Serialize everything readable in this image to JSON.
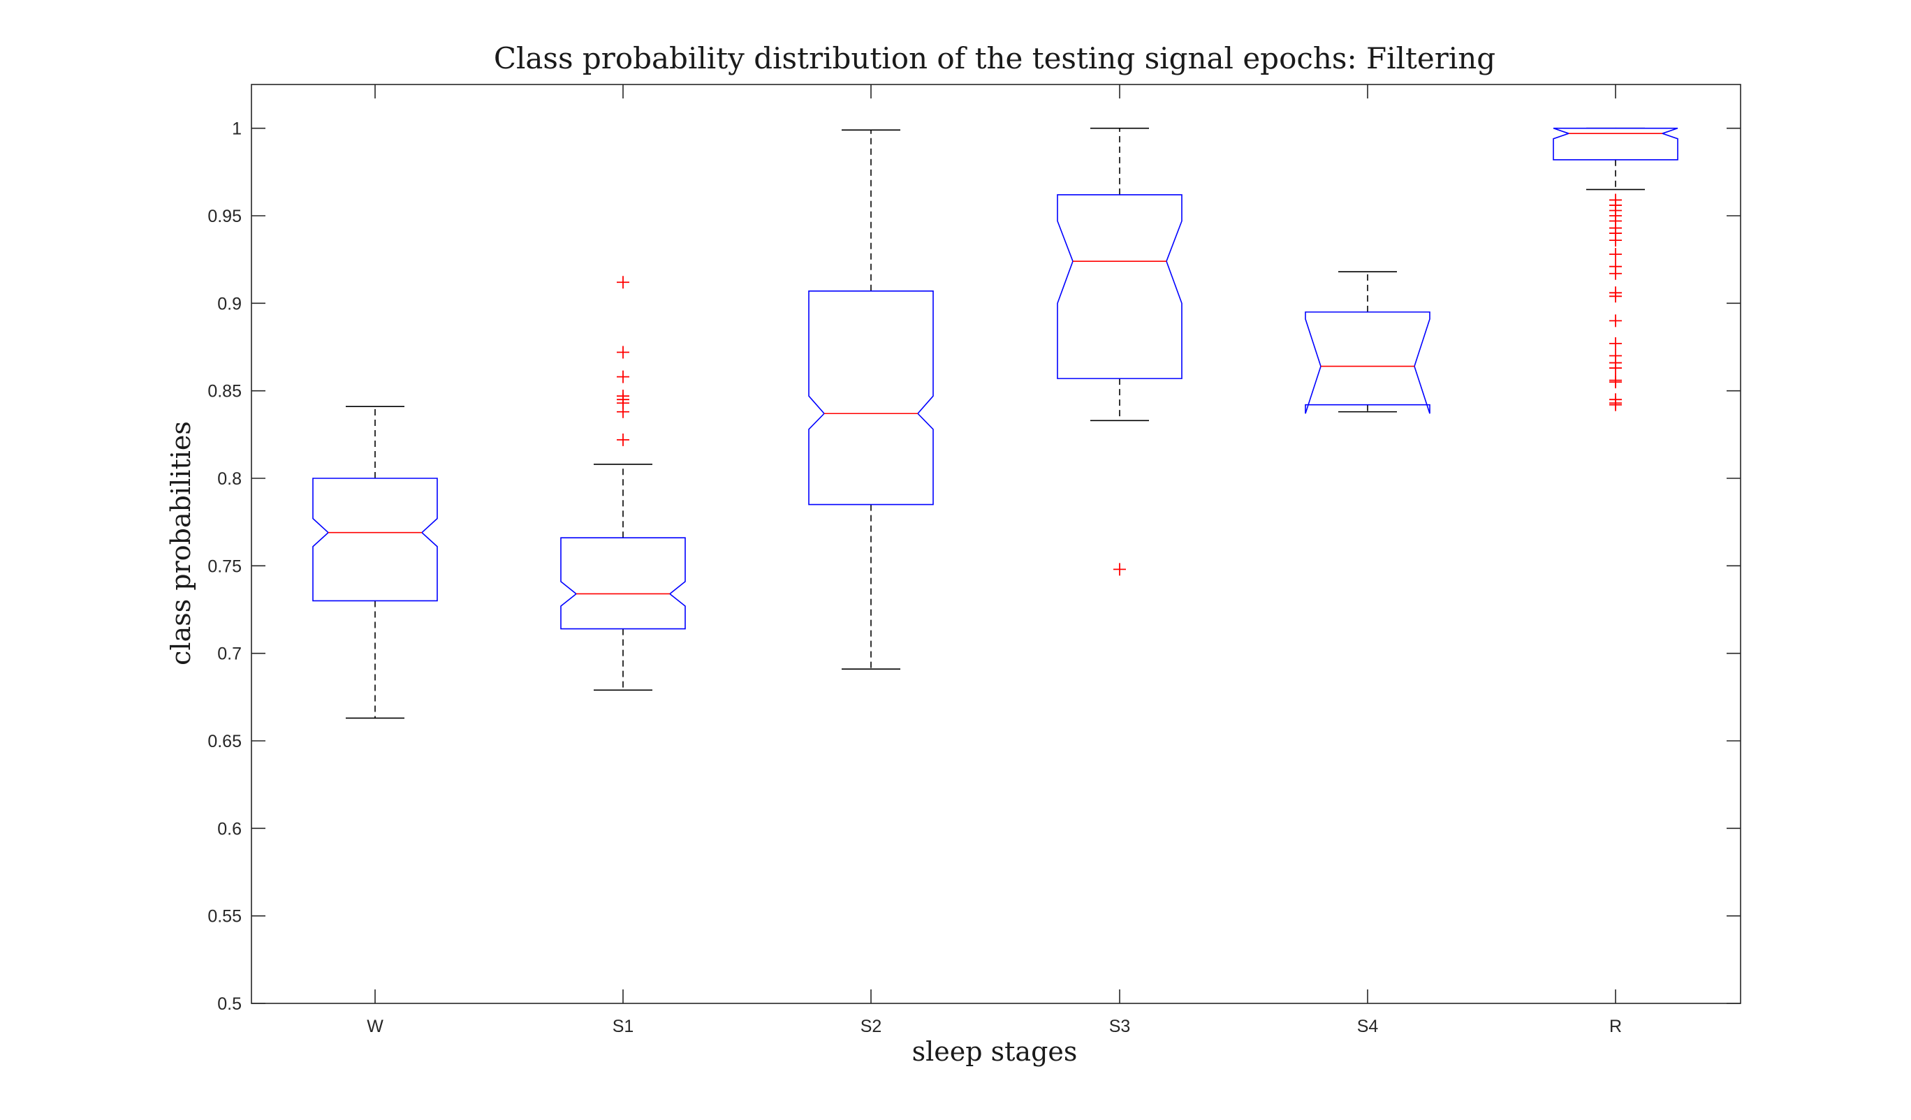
{
  "chart_data": {
    "type": "boxplot",
    "title": "Class probability distribution of the testing signal epochs: Filtering",
    "xlabel": "sleep stages",
    "ylabel": "class probabilities",
    "ylim": [
      0.5,
      1.025
    ],
    "yticks": [
      0.5,
      0.55,
      0.6,
      0.65,
      0.7,
      0.75,
      0.8,
      0.85,
      0.9,
      0.95,
      1
    ],
    "ytick_labels": [
      "0.5",
      "0.55",
      "0.6",
      "0.65",
      "0.7",
      "0.75",
      "0.8",
      "0.85",
      "0.9",
      "0.95",
      "1"
    ],
    "categories": [
      "W",
      "S1",
      "S2",
      "S3",
      "S4",
      "R"
    ],
    "notched": true,
    "grid": false,
    "colors": {
      "box": "#0000ff",
      "median": "#ff0000",
      "whisker": "#000000",
      "outlier": "#ff0000"
    },
    "boxes": [
      {
        "category": "W",
        "whisker_low": 0.663,
        "q1": 0.73,
        "median": 0.769,
        "q3": 0.8,
        "whisker_high": 0.841,
        "notch_low": 0.761,
        "notch_high": 0.777,
        "outliers": []
      },
      {
        "category": "S1",
        "whisker_low": 0.679,
        "q1": 0.714,
        "median": 0.734,
        "q3": 0.766,
        "whisker_high": 0.808,
        "notch_low": 0.727,
        "notch_high": 0.741,
        "outliers": [
          0.912,
          0.872,
          0.858,
          0.847,
          0.845,
          0.843,
          0.838,
          0.822
        ]
      },
      {
        "category": "S2",
        "whisker_low": 0.691,
        "q1": 0.785,
        "median": 0.837,
        "q3": 0.907,
        "whisker_high": 0.999,
        "notch_low": 0.828,
        "notch_high": 0.847,
        "outliers": []
      },
      {
        "category": "S3",
        "whisker_low": 0.833,
        "q1": 0.857,
        "median": 0.924,
        "q3": 0.962,
        "whisker_high": 1.0,
        "notch_low": 0.9,
        "notch_high": 0.947,
        "outliers": [
          0.748
        ]
      },
      {
        "category": "S4",
        "whisker_low": 0.838,
        "q1": 0.842,
        "median": 0.864,
        "q3": 0.895,
        "whisker_high": 0.918,
        "notch_low": 0.837,
        "notch_high": 0.891,
        "outliers": []
      },
      {
        "category": "R",
        "whisker_low": 0.965,
        "q1": 0.982,
        "median": 0.997,
        "q3": 1.0,
        "whisker_high": 1.0,
        "notch_low": 0.994,
        "notch_high": 1.0,
        "outliers": [
          0.959,
          0.956,
          0.953,
          0.95,
          0.947,
          0.943,
          0.94,
          0.936,
          0.928,
          0.921,
          0.917,
          0.906,
          0.904,
          0.89,
          0.877,
          0.87,
          0.866,
          0.863,
          0.856,
          0.855,
          0.845,
          0.843,
          0.842
        ]
      }
    ]
  }
}
